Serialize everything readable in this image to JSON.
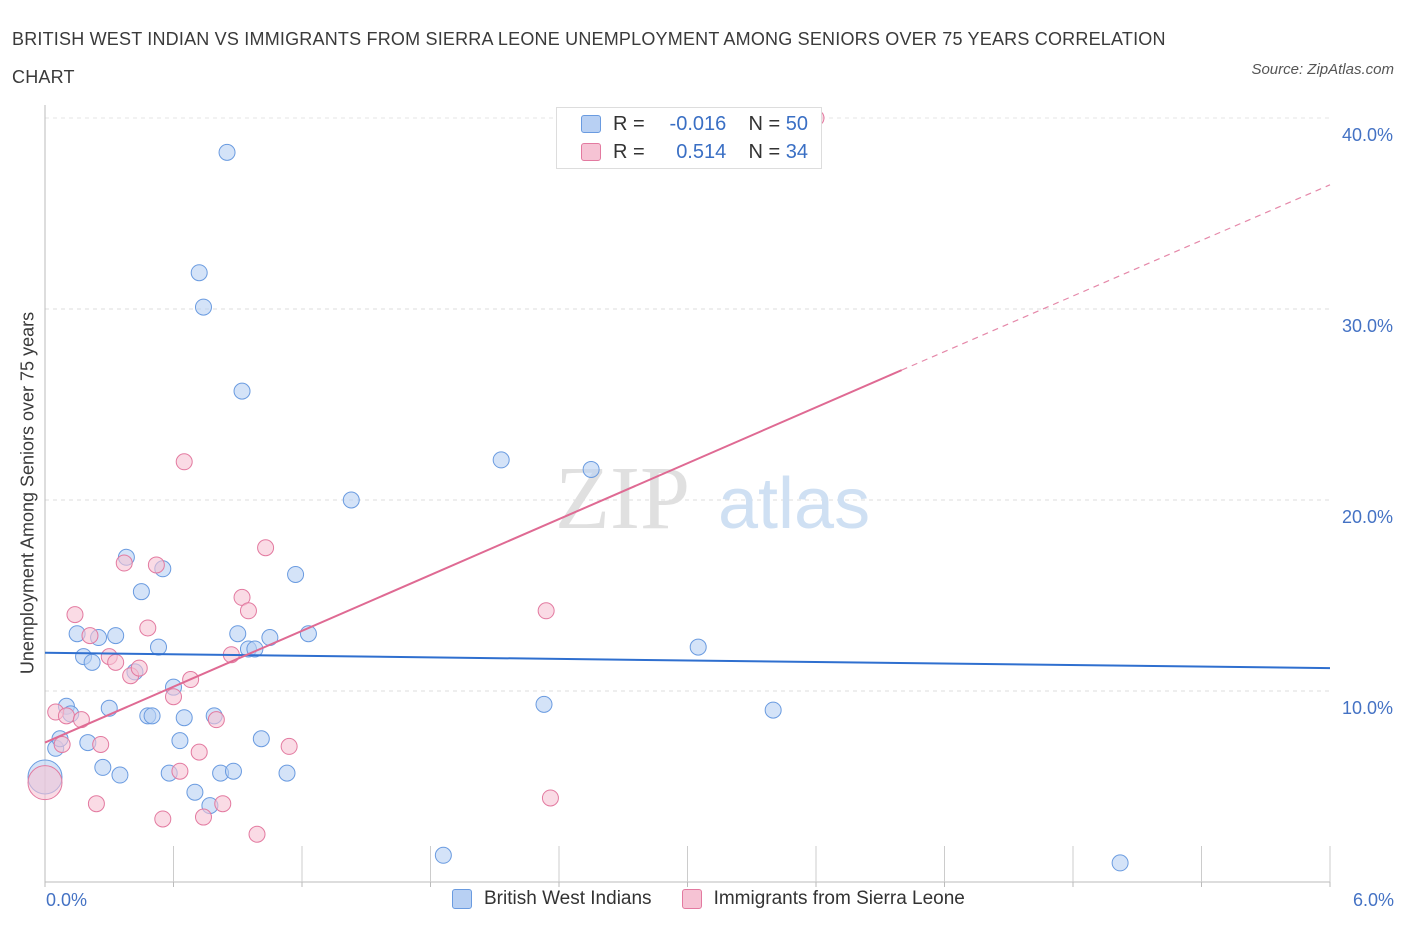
{
  "title": "BRITISH WEST INDIAN VS IMMIGRANTS FROM SIERRA LEONE UNEMPLOYMENT AMONG SENIORS OVER 75 YEARS CORRELATION CHART",
  "source": "Source: ZipAtlas.com",
  "watermark": {
    "zip": "ZIP",
    "atlas": "atlas"
  },
  "legend_top": {
    "rows": [
      {
        "r_label": "R =",
        "r_value": "-0.016",
        "n_label": "N =",
        "n_value": "50"
      },
      {
        "r_label": "R =",
        "r_value": "0.514",
        "n_label": "N =",
        "n_value": "34"
      }
    ]
  },
  "chart_data": {
    "type": "scatter",
    "title": "BRITISH WEST INDIAN VS IMMIGRANTS FROM SIERRA LEONE UNEMPLOYMENT AMONG SENIORS OVER 75 YEARS CORRELATION CHART",
    "xlabel": "",
    "ylabel": "Unemployment Among Seniors over 75 years",
    "xlim": [
      0,
      6
    ],
    "ylim": [
      0,
      40
    ],
    "x_edge_labels": [
      "0.0%",
      "6.0%"
    ],
    "y_ticks": [
      10,
      20,
      30,
      40
    ],
    "y_tick_labels": [
      "10.0%",
      "20.0%",
      "30.0%",
      "40.0%"
    ],
    "grid": true,
    "legend_position": "top-center",
    "colors": {
      "blue": "#6a9be0",
      "blue_fill": "#b8d0f3",
      "blue_line": "#2f6fcf",
      "pink": "#e37aa0",
      "pink_fill": "#f6c3d4",
      "pink_line": "#df6a93"
    },
    "series": [
      {
        "name": "British West Indians",
        "color": "blue",
        "r": -0.016,
        "n": 50,
        "trend": {
          "x0": 0.0,
          "y0": 12.0,
          "x1": 6.0,
          "y1": 11.2
        },
        "points": [
          [
            0.0,
            5.5
          ],
          [
            0.05,
            7.0
          ],
          [
            0.07,
            7.5
          ],
          [
            0.1,
            9.2
          ],
          [
            0.12,
            8.8
          ],
          [
            0.15,
            13.0
          ],
          [
            0.18,
            11.8
          ],
          [
            0.2,
            7.3
          ],
          [
            0.22,
            11.5
          ],
          [
            0.25,
            12.8
          ],
          [
            0.27,
            6.0
          ],
          [
            0.3,
            9.1
          ],
          [
            0.33,
            12.9
          ],
          [
            0.35,
            5.6
          ],
          [
            0.38,
            17.0
          ],
          [
            0.42,
            11.0
          ],
          [
            0.45,
            15.2
          ],
          [
            0.48,
            8.7
          ],
          [
            0.5,
            8.7
          ],
          [
            0.53,
            12.3
          ],
          [
            0.55,
            16.4
          ],
          [
            0.58,
            5.7
          ],
          [
            0.6,
            10.2
          ],
          [
            0.63,
            7.4
          ],
          [
            0.65,
            8.6
          ],
          [
            0.7,
            4.7
          ],
          [
            0.72,
            31.9
          ],
          [
            0.74,
            30.1
          ],
          [
            0.77,
            4.0
          ],
          [
            0.79,
            8.7
          ],
          [
            0.82,
            5.7
          ],
          [
            0.85,
            38.2
          ],
          [
            0.88,
            5.8
          ],
          [
            0.9,
            13.0
          ],
          [
            0.92,
            25.7
          ],
          [
            0.95,
            12.2
          ],
          [
            0.98,
            12.2
          ],
          [
            1.01,
            7.5
          ],
          [
            1.05,
            12.8
          ],
          [
            1.13,
            5.7
          ],
          [
            1.17,
            16.1
          ],
          [
            1.23,
            13.0
          ],
          [
            1.43,
            20.0
          ],
          [
            1.86,
            1.4
          ],
          [
            2.13,
            22.1
          ],
          [
            2.33,
            9.3
          ],
          [
            2.55,
            21.6
          ],
          [
            3.05,
            12.3
          ],
          [
            3.4,
            9.0
          ],
          [
            5.02,
            1.0
          ]
        ]
      },
      {
        "name": "Immigrants from Sierra Leone",
        "color": "pink",
        "r": 0.514,
        "n": 34,
        "trend": {
          "x0": 0.0,
          "y0": 7.3,
          "x1": 4.0,
          "y1": 26.8,
          "dash_x1": 6.0,
          "dash_y1": 36.5
        },
        "points": [
          [
            0.0,
            5.2
          ],
          [
            0.05,
            8.9
          ],
          [
            0.08,
            7.2
          ],
          [
            0.1,
            8.7
          ],
          [
            0.14,
            14.0
          ],
          [
            0.17,
            8.5
          ],
          [
            0.21,
            12.9
          ],
          [
            0.24,
            4.1
          ],
          [
            0.26,
            7.2
          ],
          [
            0.3,
            11.8
          ],
          [
            0.33,
            11.5
          ],
          [
            0.37,
            16.7
          ],
          [
            0.4,
            10.8
          ],
          [
            0.44,
            11.2
          ],
          [
            0.48,
            13.3
          ],
          [
            0.52,
            16.6
          ],
          [
            0.55,
            3.3
          ],
          [
            0.6,
            9.7
          ],
          [
            0.63,
            5.8
          ],
          [
            0.65,
            22.0
          ],
          [
            0.68,
            10.6
          ],
          [
            0.72,
            6.8
          ],
          [
            0.74,
            3.4
          ],
          [
            0.8,
            8.5
          ],
          [
            0.83,
            4.1
          ],
          [
            0.87,
            11.9
          ],
          [
            0.92,
            14.9
          ],
          [
            0.95,
            14.2
          ],
          [
            0.99,
            2.5
          ],
          [
            1.03,
            17.5
          ],
          [
            1.14,
            7.1
          ],
          [
            2.34,
            14.2
          ],
          [
            2.36,
            4.4
          ],
          [
            3.6,
            40.0
          ]
        ]
      }
    ]
  }
}
